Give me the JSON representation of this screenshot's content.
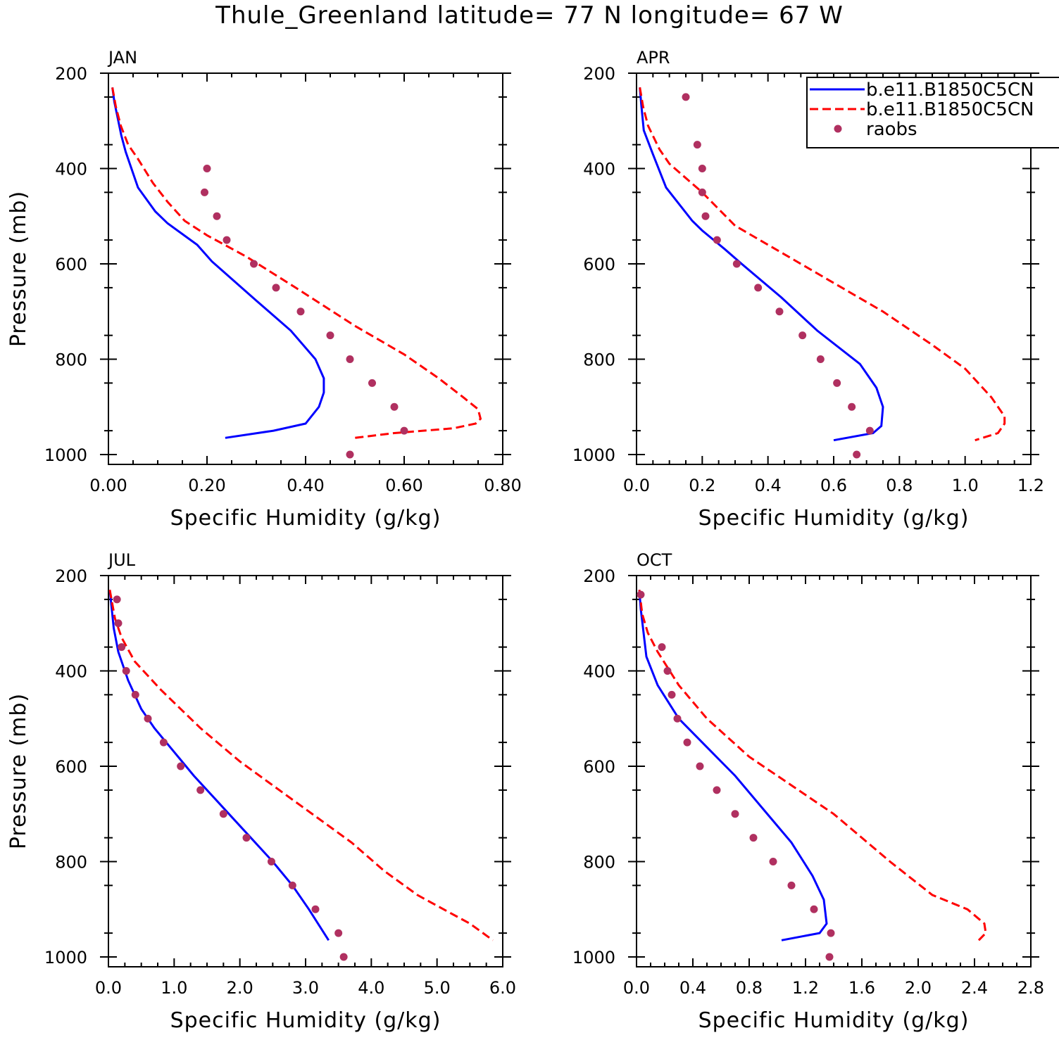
{
  "title": "Thule_Greenland  latitude= 77 N longitude= 67 W",
  "colors": {
    "model1": "#0000ff",
    "model2": "#ff0000",
    "obs": "#b03060"
  },
  "legend": [
    {
      "label": "b.e11.B1850C5CN",
      "style": "solid",
      "color": "#0000ff"
    },
    {
      "label": "b.e11.B1850C5CN",
      "style": "dashed",
      "color": "#ff0000"
    },
    {
      "label": "raobs",
      "style": "marker",
      "color": "#b03060"
    }
  ],
  "chart_data": [
    {
      "type": "line",
      "panel": "JAN",
      "xlabel": "Specific Humidity (g/kg)",
      "ylabel": "Pressure (mb)",
      "xlim": [
        0,
        0.8
      ],
      "ylim": [
        1000,
        200
      ],
      "y_reversed": true,
      "xticks": [
        0,
        0.2,
        0.4,
        0.6,
        0.8
      ],
      "xtick_labels": [
        "0.00",
        "0.20",
        "0.40",
        "0.60",
        "0.80"
      ],
      "yticks": [
        200,
        400,
        600,
        800,
        1000
      ],
      "ytick_labels": [
        "200",
        "400",
        "600",
        "800",
        "1000"
      ],
      "series": [
        {
          "style": "solid",
          "points": [
            [
              0.008,
              230
            ],
            [
              0.012,
              260
            ],
            [
              0.018,
              290
            ],
            [
              0.026,
              330
            ],
            [
              0.035,
              365
            ],
            [
              0.06,
              440
            ],
            [
              0.095,
              490
            ],
            [
              0.12,
              515
            ],
            [
              0.18,
              560
            ],
            [
              0.21,
              595
            ],
            [
              0.3,
              677
            ],
            [
              0.37,
              740
            ],
            [
              0.42,
              800
            ],
            [
              0.437,
              840
            ],
            [
              0.437,
              870
            ],
            [
              0.427,
              900
            ],
            [
              0.4,
              935
            ],
            [
              0.335,
              950
            ],
            [
              0.237,
              965
            ]
          ]
        },
        {
          "style": "dashed",
          "points": [
            [
              0.008,
              230
            ],
            [
              0.015,
              270
            ],
            [
              0.025,
              310
            ],
            [
              0.04,
              350
            ],
            [
              0.06,
              380
            ],
            [
              0.09,
              430
            ],
            [
              0.12,
              470
            ],
            [
              0.155,
              510
            ],
            [
              0.2,
              540
            ],
            [
              0.28,
              585
            ],
            [
              0.38,
              650
            ],
            [
              0.5,
              730
            ],
            [
              0.6,
              790
            ],
            [
              0.67,
              840
            ],
            [
              0.72,
              880
            ],
            [
              0.75,
              905
            ],
            [
              0.755,
              925
            ],
            [
              0.745,
              935
            ],
            [
              0.7,
              945
            ],
            [
              0.58,
              955
            ],
            [
              0.5,
              965
            ]
          ]
        },
        {
          "style": "marker",
          "points": [
            [
              0.2,
              400
            ],
            [
              0.195,
              450
            ],
            [
              0.22,
              500
            ],
            [
              0.24,
              550
            ],
            [
              0.295,
              600
            ],
            [
              0.34,
              650
            ],
            [
              0.39,
              700
            ],
            [
              0.45,
              750
            ],
            [
              0.49,
              800
            ],
            [
              0.535,
              850
            ],
            [
              0.58,
              900
            ],
            [
              0.6,
              950
            ],
            [
              0.49,
              1000
            ]
          ]
        }
      ]
    },
    {
      "type": "line",
      "panel": "APR",
      "xlabel": "Specific Humidity (g/kg)",
      "ylabel": "",
      "xlim": [
        0,
        1.2
      ],
      "ylim": [
        1000,
        200
      ],
      "y_reversed": true,
      "xticks": [
        0,
        0.2,
        0.4,
        0.6,
        0.8,
        1.0,
        1.2
      ],
      "xtick_labels": [
        "0.0",
        "0.2",
        "0.4",
        "0.6",
        "0.8",
        "1.0",
        "1.2"
      ],
      "yticks": [
        200,
        400,
        600,
        800,
        1000
      ],
      "ytick_labels": [
        "200",
        "400",
        "600",
        "800",
        "1000"
      ],
      "series": [
        {
          "style": "solid",
          "points": [
            [
              0.01,
              230
            ],
            [
              0.015,
              270
            ],
            [
              0.022,
              320
            ],
            [
              0.05,
              370
            ],
            [
              0.09,
              440
            ],
            [
              0.17,
              510
            ],
            [
              0.2,
              530
            ],
            [
              0.27,
              570
            ],
            [
              0.32,
              600
            ],
            [
              0.44,
              670
            ],
            [
              0.55,
              740
            ],
            [
              0.68,
              810
            ],
            [
              0.73,
              860
            ],
            [
              0.75,
              900
            ],
            [
              0.745,
              940
            ],
            [
              0.72,
              955
            ],
            [
              0.6,
              970
            ]
          ]
        },
        {
          "style": "dashed",
          "points": [
            [
              0.01,
              230
            ],
            [
              0.02,
              270
            ],
            [
              0.035,
              310
            ],
            [
              0.07,
              360
            ],
            [
              0.1,
              390
            ],
            [
              0.2,
              450
            ],
            [
              0.3,
              520
            ],
            [
              0.45,
              580
            ],
            [
              0.6,
              640
            ],
            [
              0.75,
              700
            ],
            [
              0.9,
              770
            ],
            [
              1.0,
              820
            ],
            [
              1.08,
              880
            ],
            [
              1.12,
              920
            ],
            [
              1.12,
              935
            ],
            [
              1.1,
              955
            ],
            [
              1.03,
              970
            ]
          ]
        },
        {
          "style": "marker",
          "points": [
            [
              0.15,
              250
            ],
            [
              0.185,
              350
            ],
            [
              0.2,
              400
            ],
            [
              0.2,
              450
            ],
            [
              0.21,
              500
            ],
            [
              0.245,
              550
            ],
            [
              0.305,
              600
            ],
            [
              0.37,
              650
            ],
            [
              0.435,
              700
            ],
            [
              0.505,
              750
            ],
            [
              0.56,
              800
            ],
            [
              0.61,
              850
            ],
            [
              0.655,
              900
            ],
            [
              0.71,
              950
            ],
            [
              0.67,
              1000
            ]
          ]
        }
      ]
    },
    {
      "type": "line",
      "panel": "JUL",
      "xlabel": "Specific Humidity (g/kg)",
      "ylabel": "Pressure (mb)",
      "xlim": [
        0,
        6
      ],
      "ylim": [
        1000,
        200
      ],
      "y_reversed": true,
      "xticks": [
        0,
        1,
        2,
        3,
        4,
        5,
        6
      ],
      "xtick_labels": [
        "0.0",
        "1.0",
        "2.0",
        "3.0",
        "4.0",
        "5.0",
        "6.0"
      ],
      "yticks": [
        200,
        400,
        600,
        800,
        1000
      ],
      "ytick_labels": [
        "200",
        "400",
        "600",
        "800",
        "1000"
      ],
      "series": [
        {
          "style": "solid",
          "points": [
            [
              0.02,
              230
            ],
            [
              0.05,
              270
            ],
            [
              0.08,
              310
            ],
            [
              0.15,
              360
            ],
            [
              0.3,
              420
            ],
            [
              0.5,
              480
            ],
            [
              0.7,
              520
            ],
            [
              1.0,
              570
            ],
            [
              1.3,
              620
            ],
            [
              1.7,
              680
            ],
            [
              2.1,
              740
            ],
            [
              2.5,
              800
            ],
            [
              2.8,
              850
            ],
            [
              3.05,
              900
            ],
            [
              3.35,
              965
            ]
          ]
        },
        {
          "style": "dashed",
          "points": [
            [
              0.02,
              230
            ],
            [
              0.1,
              290
            ],
            [
              0.2,
              330
            ],
            [
              0.4,
              380
            ],
            [
              0.8,
              440
            ],
            [
              1.4,
              520
            ],
            [
              2.0,
              590
            ],
            [
              2.6,
              650
            ],
            [
              3.2,
              710
            ],
            [
              3.7,
              760
            ],
            [
              4.2,
              820
            ],
            [
              4.7,
              870
            ],
            [
              5.1,
              900
            ],
            [
              5.5,
              930
            ],
            [
              5.7,
              950
            ],
            [
              5.85,
              965
            ]
          ]
        },
        {
          "style": "marker",
          "points": [
            [
              0.13,
              250
            ],
            [
              0.15,
              300
            ],
            [
              0.2,
              350
            ],
            [
              0.27,
              400
            ],
            [
              0.41,
              450
            ],
            [
              0.6,
              500
            ],
            [
              0.84,
              550
            ],
            [
              1.1,
              600
            ],
            [
              1.4,
              650
            ],
            [
              1.75,
              700
            ],
            [
              2.1,
              750
            ],
            [
              2.48,
              800
            ],
            [
              2.8,
              850
            ],
            [
              3.15,
              900
            ],
            [
              3.5,
              950
            ],
            [
              3.58,
              1000
            ]
          ]
        }
      ]
    },
    {
      "type": "line",
      "panel": "OCT",
      "xlabel": "Specific Humidity (g/kg)",
      "ylabel": "",
      "xlim": [
        0,
        2.8
      ],
      "ylim": [
        1000,
        200
      ],
      "y_reversed": true,
      "xticks": [
        0,
        0.4,
        0.8,
        1.2,
        1.6,
        2.0,
        2.4,
        2.8
      ],
      "xtick_labels": [
        "0.0",
        "0.4",
        "0.8",
        "1.2",
        "1.6",
        "2.0",
        "2.4",
        "2.8"
      ],
      "yticks": [
        200,
        400,
        600,
        800,
        1000
      ],
      "ytick_labels": [
        "200",
        "400",
        "600",
        "800",
        "1000"
      ],
      "series": [
        {
          "style": "solid",
          "points": [
            [
              0.02,
              230
            ],
            [
              0.03,
              270
            ],
            [
              0.05,
              320
            ],
            [
              0.07,
              370
            ],
            [
              0.15,
              430
            ],
            [
              0.3,
              500
            ],
            [
              0.5,
              560
            ],
            [
              0.7,
              620
            ],
            [
              0.9,
              690
            ],
            [
              1.1,
              760
            ],
            [
              1.25,
              830
            ],
            [
              1.33,
              880
            ],
            [
              1.35,
              930
            ],
            [
              1.3,
              950
            ],
            [
              1.03,
              965
            ]
          ]
        },
        {
          "style": "dashed",
          "points": [
            [
              0.02,
              230
            ],
            [
              0.04,
              280
            ],
            [
              0.08,
              320
            ],
            [
              0.15,
              360
            ],
            [
              0.3,
              430
            ],
            [
              0.5,
              500
            ],
            [
              0.8,
              580
            ],
            [
              1.1,
              640
            ],
            [
              1.4,
              700
            ],
            [
              1.8,
              800
            ],
            [
              2.1,
              870
            ],
            [
              2.35,
              900
            ],
            [
              2.47,
              930
            ],
            [
              2.48,
              950
            ],
            [
              2.43,
              965
            ]
          ]
        },
        {
          "style": "marker",
          "points": [
            [
              0.03,
              240
            ],
            [
              0.18,
              350
            ],
            [
              0.22,
              400
            ],
            [
              0.25,
              450
            ],
            [
              0.29,
              500
            ],
            [
              0.36,
              550
            ],
            [
              0.45,
              600
            ],
            [
              0.57,
              650
            ],
            [
              0.7,
              700
            ],
            [
              0.83,
              750
            ],
            [
              0.97,
              800
            ],
            [
              1.1,
              850
            ],
            [
              1.26,
              900
            ],
            [
              1.38,
              950
            ],
            [
              1.37,
              1000
            ]
          ]
        }
      ]
    }
  ]
}
